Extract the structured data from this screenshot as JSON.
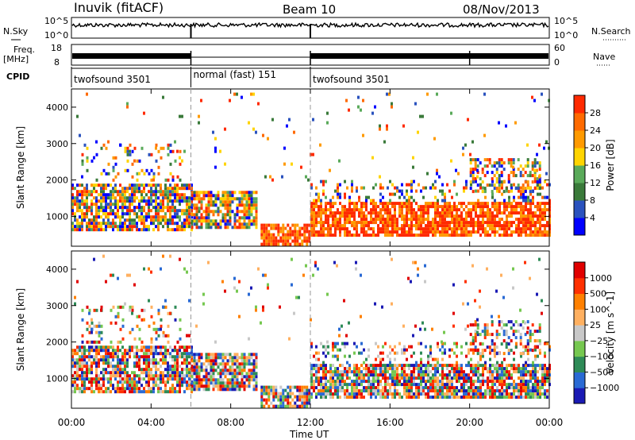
{
  "header": {
    "station": "Inuvik (fitACF)",
    "beam": "Beam 10",
    "date": "08/Nov/2013"
  },
  "strip_labels": {
    "nsky": "N.Sky",
    "nsky_top": "10^5",
    "nsky_bottom": "10^0",
    "nsearch": "N.Search",
    "nsearch_top": "10^5",
    "nsearch_bottom": "10^0",
    "freq": "Freq.",
    "freq_unit": "[MHz]",
    "freq_top": "18",
    "freq_bottom": "8",
    "nave": "Nave",
    "nave_top": "60",
    "nave_bottom": "0",
    "cpid": "CPID"
  },
  "cpid_segments": [
    {
      "label": "twofsound 3501",
      "start_h": 0,
      "end_h": 6
    },
    {
      "label": "normal (fast) 151",
      "start_h": 6,
      "end_h": 12
    },
    {
      "label": "twofsound 3501",
      "start_h": 12,
      "end_h": 24
    }
  ],
  "chart_data": [
    {
      "type": "heatmap",
      "parameter": "Power",
      "ylabel": "Slant Range [km]",
      "xlabel": "Time UT",
      "xlim": [
        0,
        24
      ],
      "ylim": [
        180,
        4500
      ],
      "x_ticks": [
        "00:00",
        "04:00",
        "08:00",
        "12:00",
        "16:00",
        "20:00",
        "00:00"
      ],
      "y_ticks": [
        1000,
        2000,
        3000,
        4000
      ],
      "colorbar": {
        "label": "Power [dB]",
        "range": [
          0,
          32
        ],
        "ticks": [
          "4",
          "8",
          "12",
          "16",
          "20",
          "24",
          "28"
        ],
        "colors": [
          "#0000ff",
          "#2a52be",
          "#3a7a3a",
          "#5aaa5a",
          "#ffd400",
          "#ff9a00",
          "#ff6a00",
          "#ff2a00"
        ]
      }
    },
    {
      "type": "heatmap",
      "parameter": "Velocity",
      "ylabel": "Slant Range [km]",
      "xlabel": "Time UT",
      "xlim": [
        0,
        24
      ],
      "ylim": [
        180,
        4500
      ],
      "x_ticks": [
        "00:00",
        "04:00",
        "08:00",
        "12:00",
        "16:00",
        "20:00",
        "00:00"
      ],
      "y_ticks": [
        1000,
        2000,
        3000,
        4000
      ],
      "colorbar": {
        "label": "Velocity [m s^-1]",
        "ticks": [
          "1000",
          "500",
          "100",
          "25",
          "−25",
          "−100",
          "−500",
          "−1000"
        ],
        "colors": [
          "#1a1ab4",
          "#2a6ad4",
          "#2e8b57",
          "#76c850",
          "#c8c8c8",
          "#ffb060",
          "#ff8000",
          "#ff3000",
          "#e00000"
        ]
      }
    }
  ]
}
